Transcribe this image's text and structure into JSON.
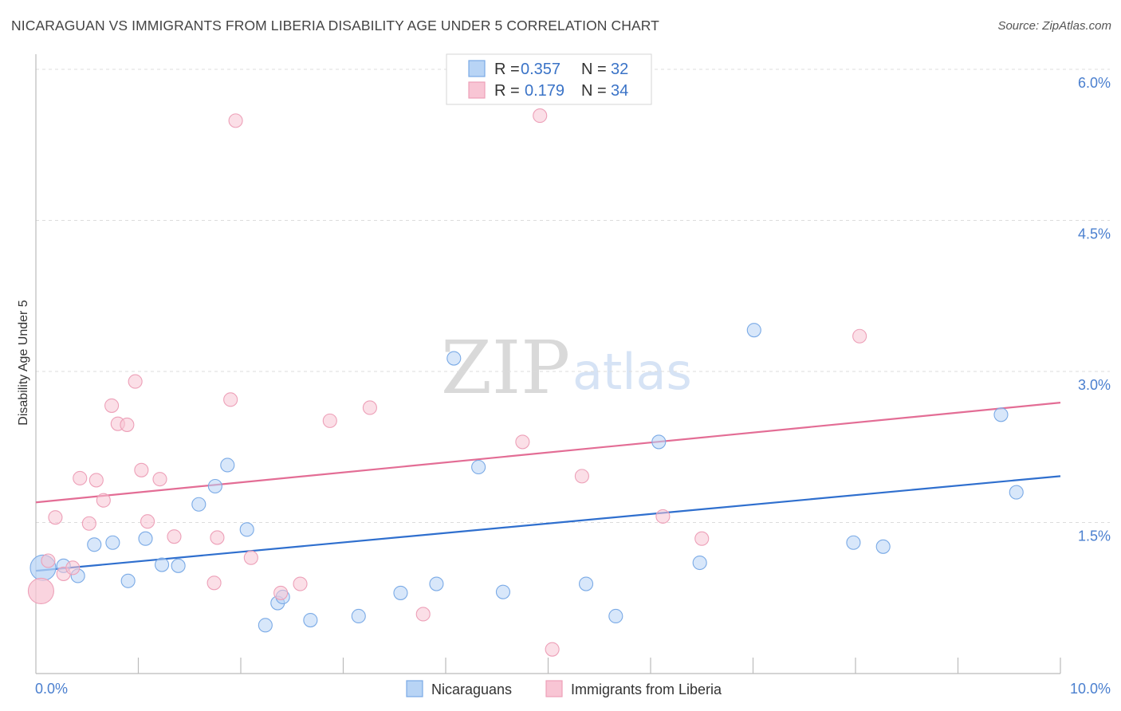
{
  "title": "NICARAGUAN VS IMMIGRANTS FROM LIBERIA DISABILITY AGE UNDER 5 CORRELATION CHART",
  "source": "Source: ZipAtlas.com",
  "watermark": {
    "zip": "ZIP",
    "atlas": "atlas"
  },
  "legend": {
    "rows": [
      {
        "r_label": "R =",
        "r_value": "0.357",
        "n_label": "N =",
        "n_value": "32"
      },
      {
        "r_label": "R =",
        "r_value": "0.179",
        "n_label": "N =",
        "n_value": "34"
      }
    ]
  },
  "colors": {
    "blue_fill": "#b8d4f5",
    "blue_stroke": "#7aaae6",
    "blue_line": "#2f6fce",
    "pink_fill": "#f8c5d4",
    "pink_stroke": "#eda0b8",
    "pink_line": "#e36d95"
  },
  "chart_data": {
    "type": "scatter",
    "title": "NICARAGUAN VS IMMIGRANTS FROM LIBERIA DISABILITY AGE UNDER 5 CORRELATION CHART",
    "xlabel": "",
    "ylabel": "Disability Age Under 5",
    "xlim": [
      0,
      10
    ],
    "ylim": [
      0,
      6.15
    ],
    "x_tick_labels": [
      "0.0%",
      "10.0%"
    ],
    "y_ticks": [
      1.5,
      3.0,
      4.5,
      6.0
    ],
    "y_tick_labels": [
      "1.5%",
      "3.0%",
      "4.5%",
      "6.0%"
    ],
    "grid": true,
    "series": [
      {
        "name": "Nicaraguans",
        "color": "blue",
        "trend": {
          "x": [
            0,
            10
          ],
          "y": [
            1.02,
            1.96
          ]
        },
        "points": [
          {
            "x": 0.07,
            "y": 1.05,
            "big": true
          },
          {
            "x": 0.27,
            "y": 1.07
          },
          {
            "x": 0.41,
            "y": 0.97
          },
          {
            "x": 0.57,
            "y": 1.28
          },
          {
            "x": 0.75,
            "y": 1.3
          },
          {
            "x": 0.9,
            "y": 0.92
          },
          {
            "x": 1.07,
            "y": 1.34
          },
          {
            "x": 1.23,
            "y": 1.08
          },
          {
            "x": 1.39,
            "y": 1.07
          },
          {
            "x": 1.59,
            "y": 1.68
          },
          {
            "x": 1.75,
            "y": 1.86
          },
          {
            "x": 1.87,
            "y": 2.07
          },
          {
            "x": 2.06,
            "y": 1.43
          },
          {
            "x": 2.24,
            "y": 0.48
          },
          {
            "x": 2.36,
            "y": 0.7
          },
          {
            "x": 2.41,
            "y": 0.76
          },
          {
            "x": 2.68,
            "y": 0.53
          },
          {
            "x": 3.15,
            "y": 0.57
          },
          {
            "x": 3.56,
            "y": 0.8
          },
          {
            "x": 3.91,
            "y": 0.89
          },
          {
            "x": 4.08,
            "y": 3.13
          },
          {
            "x": 4.32,
            "y": 2.05
          },
          {
            "x": 4.56,
            "y": 0.81
          },
          {
            "x": 5.37,
            "y": 0.89
          },
          {
            "x": 5.66,
            "y": 0.57
          },
          {
            "x": 6.08,
            "y": 2.3
          },
          {
            "x": 6.48,
            "y": 1.1
          },
          {
            "x": 7.01,
            "y": 3.41
          },
          {
            "x": 7.98,
            "y": 1.3
          },
          {
            "x": 8.27,
            "y": 1.26
          },
          {
            "x": 9.42,
            "y": 2.57
          },
          {
            "x": 9.57,
            "y": 1.8
          }
        ]
      },
      {
        "name": "Immigrants from Liberia",
        "color": "pink",
        "trend": {
          "x": [
            0,
            10
          ],
          "y": [
            1.7,
            2.69
          ]
        },
        "points": [
          {
            "x": 0.05,
            "y": 0.82,
            "big": true
          },
          {
            "x": 0.12,
            "y": 1.12
          },
          {
            "x": 0.19,
            "y": 1.55
          },
          {
            "x": 0.27,
            "y": 0.99
          },
          {
            "x": 0.36,
            "y": 1.05
          },
          {
            "x": 0.43,
            "y": 1.94
          },
          {
            "x": 0.52,
            "y": 1.49
          },
          {
            "x": 0.59,
            "y": 1.92
          },
          {
            "x": 0.66,
            "y": 1.72
          },
          {
            "x": 0.74,
            "y": 2.66
          },
          {
            "x": 0.8,
            "y": 2.48
          },
          {
            "x": 0.89,
            "y": 2.47
          },
          {
            "x": 0.97,
            "y": 2.9
          },
          {
            "x": 1.03,
            "y": 2.02
          },
          {
            "x": 1.09,
            "y": 1.51
          },
          {
            "x": 1.21,
            "y": 1.93
          },
          {
            "x": 1.35,
            "y": 1.36
          },
          {
            "x": 1.74,
            "y": 0.9
          },
          {
            "x": 1.77,
            "y": 1.35
          },
          {
            "x": 1.9,
            "y": 2.72
          },
          {
            "x": 1.95,
            "y": 5.49
          },
          {
            "x": 2.1,
            "y": 1.15
          },
          {
            "x": 2.39,
            "y": 0.8
          },
          {
            "x": 2.58,
            "y": 0.89
          },
          {
            "x": 2.87,
            "y": 2.51
          },
          {
            "x": 3.26,
            "y": 2.64
          },
          {
            "x": 3.78,
            "y": 0.59
          },
          {
            "x": 4.75,
            "y": 2.3
          },
          {
            "x": 4.92,
            "y": 5.54
          },
          {
            "x": 5.04,
            "y": 0.24
          },
          {
            "x": 5.33,
            "y": 1.96
          },
          {
            "x": 6.12,
            "y": 1.56
          },
          {
            "x": 6.5,
            "y": 1.34
          },
          {
            "x": 8.04,
            "y": 3.35
          }
        ]
      }
    ]
  }
}
